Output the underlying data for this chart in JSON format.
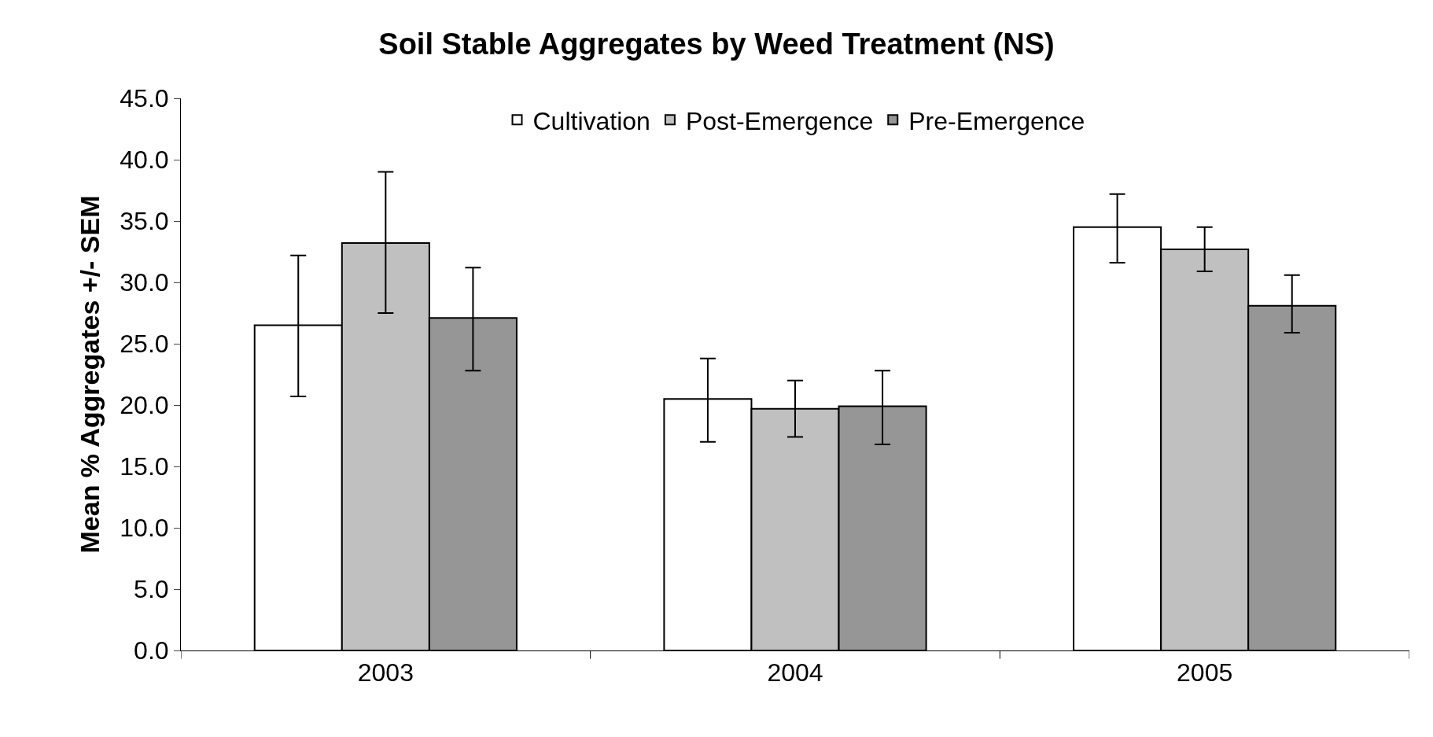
{
  "chart_data": {
    "type": "bar",
    "title": "Soil Stable Aggregates by Weed Treatment (NS)",
    "ylabel": "Mean % Aggregates +/- SEM",
    "categories": [
      "2003",
      "2004",
      "2005"
    ],
    "series": [
      {
        "name": "Cultivation",
        "color": "#ffffff",
        "values": [
          26.5,
          20.5,
          34.5
        ],
        "errors": [
          [
            20.7,
            32.2
          ],
          [
            17.0,
            23.8
          ],
          [
            31.6,
            37.2
          ]
        ]
      },
      {
        "name": "Post-Emergence",
        "color": "#c0c0c0",
        "values": [
          33.2,
          19.7,
          32.7
        ],
        "errors": [
          [
            27.5,
            39.0
          ],
          [
            17.4,
            22.0
          ],
          [
            30.9,
            34.5
          ]
        ]
      },
      {
        "name": "Pre-Emergence",
        "color": "#969696",
        "values": [
          27.1,
          19.9,
          28.1
        ],
        "errors": [
          [
            22.8,
            31.2
          ],
          [
            16.8,
            22.8
          ],
          [
            25.9,
            30.6
          ]
        ]
      }
    ],
    "ylim": [
      0,
      45
    ],
    "yticks": [
      {
        "value": 0,
        "label": "0.0"
      },
      {
        "value": 5,
        "label": "5.0"
      },
      {
        "value": 10,
        "label": "10.0"
      },
      {
        "value": 15,
        "label": "15.0"
      },
      {
        "value": 20,
        "label": "20.0"
      },
      {
        "value": 25,
        "label": "25.0"
      },
      {
        "value": 30,
        "label": "30.0"
      },
      {
        "value": 35,
        "label": "35.0"
      },
      {
        "value": 40,
        "label": "40.0"
      },
      {
        "value": 45,
        "label": "45.0"
      }
    ],
    "grid": false,
    "legend": "top"
  }
}
